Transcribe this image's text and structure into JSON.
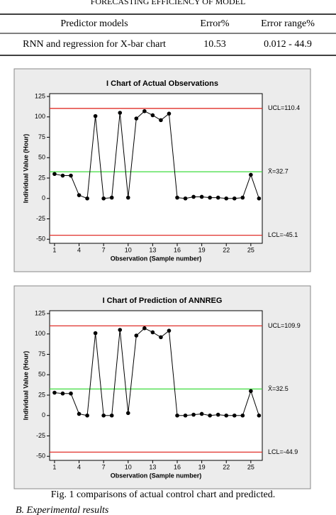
{
  "table": {
    "title": "FORECASTING EFFICIENCY OF MODEL",
    "header": [
      "Predictor models",
      "Error%",
      "Error range%"
    ],
    "rows": [
      [
        "RNN and regression for X-bar chart",
        "10.53",
        "0.012 - 44.9"
      ]
    ]
  },
  "chart_data": [
    {
      "type": "line",
      "title": "I Chart of Actual Observations",
      "x_label": "Observation (Sample number)",
      "y_label": "Individual Value (Hour)",
      "x": [
        1,
        2,
        3,
        4,
        5,
        6,
        7,
        8,
        9,
        10,
        11,
        12,
        13,
        14,
        15,
        16,
        17,
        18,
        19,
        20,
        21,
        22,
        23,
        24,
        25,
        26
      ],
      "values": [
        30,
        28,
        28,
        4,
        0,
        101,
        0,
        1,
        105,
        1,
        98,
        107,
        102,
        96,
        104,
        1,
        0,
        2,
        2,
        1,
        1,
        0,
        0,
        1,
        29,
        0
      ],
      "color": "#000000",
      "xlim": [
        0.4,
        26.4
      ],
      "ylim": [
        -55,
        128.5
      ],
      "xticks": [
        1,
        4,
        7,
        10,
        13,
        16,
        19,
        22,
        25
      ],
      "yticks": [
        -50,
        -25,
        0,
        25,
        50,
        75,
        100,
        125
      ],
      "reference_lines": [
        {
          "value": 110.4,
          "label": "UCL=110.4",
          "color": "#e0302a"
        },
        {
          "value": 32.7,
          "label": "X̄=32.7",
          "color": "#3fdc3f"
        },
        {
          "value": -45.1,
          "label": "LCL=-45.1",
          "color": "#e0302a"
        }
      ]
    },
    {
      "type": "line",
      "title": "I Chart of Prediction of ANNREG",
      "x_label": "Observation (Sample number)",
      "y_label": "Individual Value (Hour)",
      "x": [
        1,
        2,
        3,
        4,
        5,
        6,
        7,
        8,
        9,
        10,
        11,
        12,
        13,
        14,
        15,
        16,
        17,
        18,
        19,
        20,
        21,
        22,
        23,
        24,
        25,
        26
      ],
      "values": [
        28,
        27,
        27,
        2,
        0,
        101,
        0,
        0,
        105,
        3,
        98,
        107,
        102,
        96,
        104,
        0,
        0,
        1,
        2,
        0,
        1,
        0,
        0,
        0,
        30,
        0
      ],
      "color": "#000000",
      "xlim": [
        0.4,
        26.4
      ],
      "ylim": [
        -55,
        128.5
      ],
      "xticks": [
        1,
        4,
        7,
        10,
        13,
        16,
        19,
        22,
        25
      ],
      "yticks": [
        -50,
        -25,
        0,
        25,
        50,
        75,
        100,
        125
      ],
      "reference_lines": [
        {
          "value": 109.9,
          "label": "UCL=109.9",
          "color": "#e0302a"
        },
        {
          "value": 32.5,
          "label": "X̄=32.5",
          "color": "#3fdc3f"
        },
        {
          "value": -44.9,
          "label": "LCL=-44.9",
          "color": "#e0302a"
        }
      ]
    }
  ],
  "caption": "Fig. 1 comparisons of actual control chart and predicted.",
  "section": "B. Experimental results"
}
